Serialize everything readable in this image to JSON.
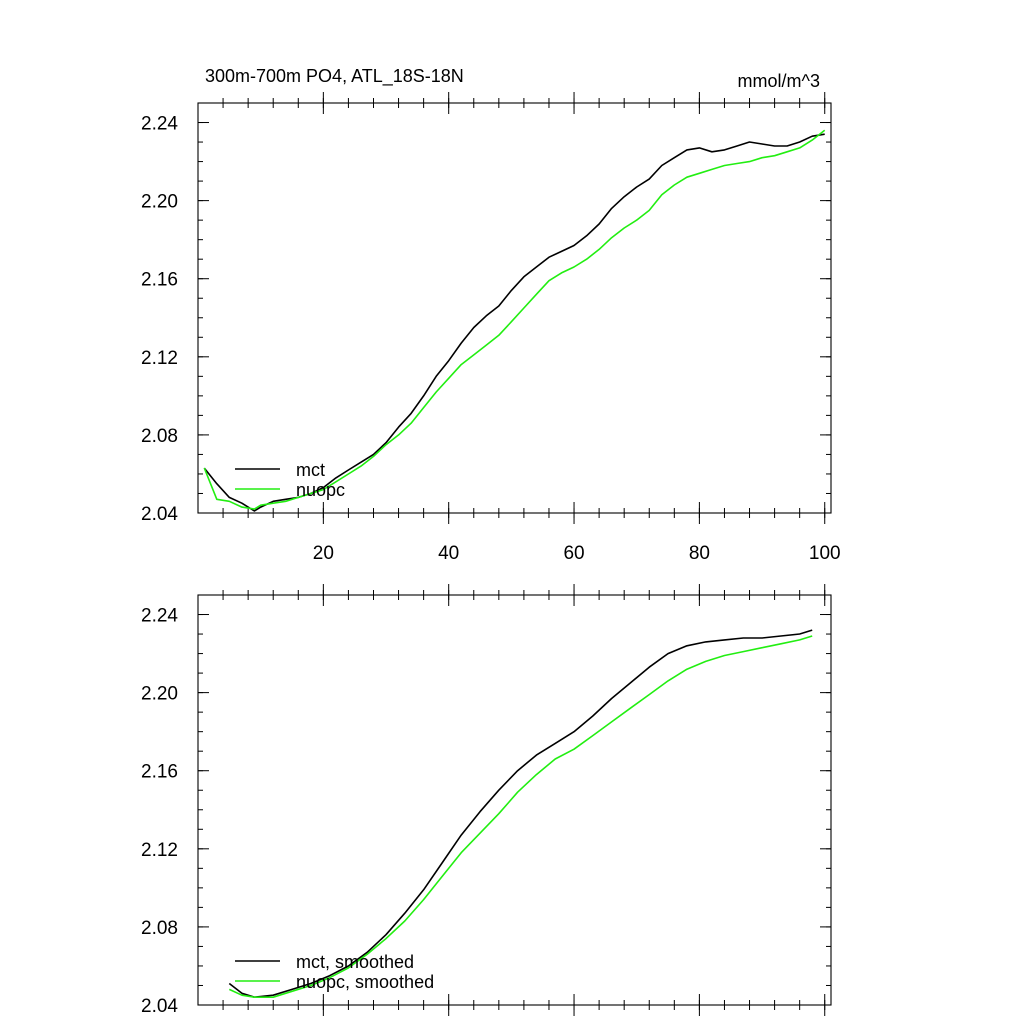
{
  "chart_data": [
    {
      "type": "line",
      "title": "300m-700m PO4, ATL_18S-18N",
      "units": "mmol/m^3",
      "xlim": [
        0,
        101
      ],
      "ylim": [
        2.04,
        2.25
      ],
      "xticks": [
        20,
        40,
        60,
        80,
        100
      ],
      "xtick_labels": [
        "20",
        "40",
        "60",
        "80",
        "100"
      ],
      "yticks": [
        2.04,
        2.08,
        2.12,
        2.16,
        2.2,
        2.24
      ],
      "ytick_labels": [
        "2.04",
        "2.08",
        "2.12",
        "2.16",
        "2.20",
        "2.24"
      ],
      "legend_position": "bottom-left",
      "series": [
        {
          "name": "mct",
          "color": "#000000",
          "x": [
            1,
            3,
            5,
            7,
            9,
            10,
            12,
            14,
            16,
            18,
            20,
            22,
            24,
            26,
            28,
            30,
            32,
            34,
            36,
            38,
            40,
            42,
            44,
            46,
            48,
            50,
            52,
            54,
            56,
            58,
            60,
            62,
            64,
            66,
            68,
            70,
            72,
            74,
            76,
            78,
            80,
            82,
            84,
            86,
            88,
            90,
            92,
            94,
            96,
            98,
            100
          ],
          "y": [
            2.063,
            2.055,
            2.048,
            2.045,
            2.041,
            2.043,
            2.046,
            2.047,
            2.048,
            2.05,
            2.053,
            2.058,
            2.062,
            2.066,
            2.07,
            2.076,
            2.084,
            2.091,
            2.1,
            2.11,
            2.118,
            2.127,
            2.135,
            2.141,
            2.146,
            2.154,
            2.161,
            2.166,
            2.171,
            2.174,
            2.177,
            2.182,
            2.188,
            2.196,
            2.202,
            2.207,
            2.211,
            2.218,
            2.222,
            2.226,
            2.227,
            2.225,
            2.226,
            2.228,
            2.23,
            2.229,
            2.228,
            2.228,
            2.23,
            2.233,
            2.234
          ]
        },
        {
          "name": "nuopc",
          "color": "#22ee11",
          "x": [
            1,
            3,
            5,
            7,
            9,
            10,
            12,
            14,
            16,
            18,
            20,
            22,
            24,
            26,
            28,
            30,
            32,
            34,
            36,
            38,
            40,
            42,
            44,
            46,
            48,
            50,
            52,
            54,
            56,
            58,
            60,
            62,
            64,
            66,
            68,
            70,
            72,
            74,
            76,
            78,
            80,
            82,
            84,
            86,
            88,
            90,
            92,
            94,
            96,
            98,
            100
          ],
          "y": [
            2.063,
            2.047,
            2.046,
            2.043,
            2.042,
            2.044,
            2.045,
            2.046,
            2.048,
            2.05,
            2.052,
            2.056,
            2.06,
            2.064,
            2.069,
            2.075,
            2.08,
            2.086,
            2.094,
            2.102,
            2.109,
            2.116,
            2.121,
            2.126,
            2.131,
            2.138,
            2.145,
            2.152,
            2.159,
            2.163,
            2.166,
            2.17,
            2.175,
            2.181,
            2.186,
            2.19,
            2.195,
            2.203,
            2.208,
            2.212,
            2.214,
            2.216,
            2.218,
            2.219,
            2.22,
            2.222,
            2.223,
            2.225,
            2.227,
            2.231,
            2.236
          ]
        }
      ]
    },
    {
      "type": "line",
      "xlim": [
        0,
        101
      ],
      "ylim": [
        2.04,
        2.25
      ],
      "xticks": [
        20,
        40,
        60,
        80,
        100
      ],
      "yticks": [
        2.04,
        2.08,
        2.12,
        2.16,
        2.2,
        2.24
      ],
      "ytick_labels": [
        "2.04",
        "2.08",
        "2.12",
        "2.16",
        "2.20",
        "2.24"
      ],
      "legend_position": "bottom-left",
      "series": [
        {
          "name": "mct, smoothed",
          "color": "#000000",
          "x": [
            5,
            7,
            9,
            12,
            15,
            18,
            21,
            24,
            27,
            30,
            33,
            36,
            39,
            42,
            45,
            48,
            51,
            54,
            57,
            60,
            63,
            66,
            69,
            72,
            75,
            78,
            81,
            84,
            87,
            90,
            93,
            96,
            98
          ],
          "y": [
            2.051,
            2.046,
            2.044,
            2.045,
            2.048,
            2.051,
            2.055,
            2.06,
            2.067,
            2.076,
            2.087,
            2.099,
            2.113,
            2.127,
            2.139,
            2.15,
            2.16,
            2.168,
            2.174,
            2.18,
            2.188,
            2.197,
            2.205,
            2.213,
            2.22,
            2.224,
            2.226,
            2.227,
            2.228,
            2.228,
            2.229,
            2.23,
            2.232
          ]
        },
        {
          "name": "nuopc, smoothed",
          "color": "#22ee11",
          "x": [
            5,
            7,
            9,
            12,
            15,
            18,
            21,
            24,
            27,
            30,
            33,
            36,
            39,
            42,
            45,
            48,
            51,
            54,
            57,
            60,
            63,
            66,
            69,
            72,
            75,
            78,
            81,
            84,
            87,
            90,
            93,
            96,
            98
          ],
          "y": [
            2.048,
            2.045,
            2.044,
            2.044,
            2.047,
            2.05,
            2.054,
            2.059,
            2.066,
            2.074,
            2.083,
            2.094,
            2.106,
            2.118,
            2.128,
            2.138,
            2.149,
            2.158,
            2.166,
            2.171,
            2.178,
            2.185,
            2.192,
            2.199,
            2.206,
            2.212,
            2.216,
            2.219,
            2.221,
            2.223,
            2.225,
            2.227,
            2.229
          ]
        }
      ]
    }
  ]
}
